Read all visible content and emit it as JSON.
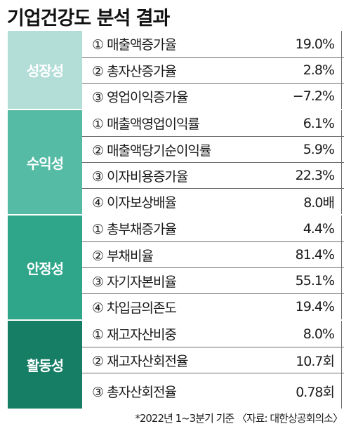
{
  "title": "기업건강도 분석 결과",
  "colors": {
    "growth": "#b3ddd7",
    "profit": "#55bba4",
    "stability": "#2fa58a",
    "activity": "#177e66"
  },
  "groups": [
    {
      "name": "성장성",
      "rows": [
        {
          "label": "① 매출액증가율",
          "value": "19.0%"
        },
        {
          "label": "② 총자산증가율",
          "value": "2.8%"
        },
        {
          "label": "③ 영업이익증가율",
          "value": "−7.2%"
        }
      ]
    },
    {
      "name": "수익성",
      "rows": [
        {
          "label": "① 매출액영업이익률",
          "value": "6.1%"
        },
        {
          "label": "② 매출액당기순이익률",
          "value": "5.9%"
        },
        {
          "label": "③ 이자비용증가율",
          "value": "22.3%"
        },
        {
          "label": "④ 이자보상배율",
          "value": "8.0배"
        }
      ]
    },
    {
      "name": "안정성",
      "rows": [
        {
          "label": "① 총부채증가율",
          "value": "4.4%"
        },
        {
          "label": "② 부채비율",
          "value": "81.4%"
        },
        {
          "label": "③ 자기자본비율",
          "value": "55.1%"
        },
        {
          "label": "④ 차입금의존도",
          "value": "19.4%"
        }
      ]
    },
    {
      "name": "활동성",
      "rows": [
        {
          "label": "① 재고자산비중",
          "value": "8.0%"
        },
        {
          "label": "② 재고자산회전율",
          "value": "10.7회"
        },
        {
          "label": "③ 총자산회전율",
          "value": "0.78회"
        }
      ]
    }
  ],
  "footnote": "*2022년 1~3분기 기준 〈자료: 대한상공회의소〉"
}
